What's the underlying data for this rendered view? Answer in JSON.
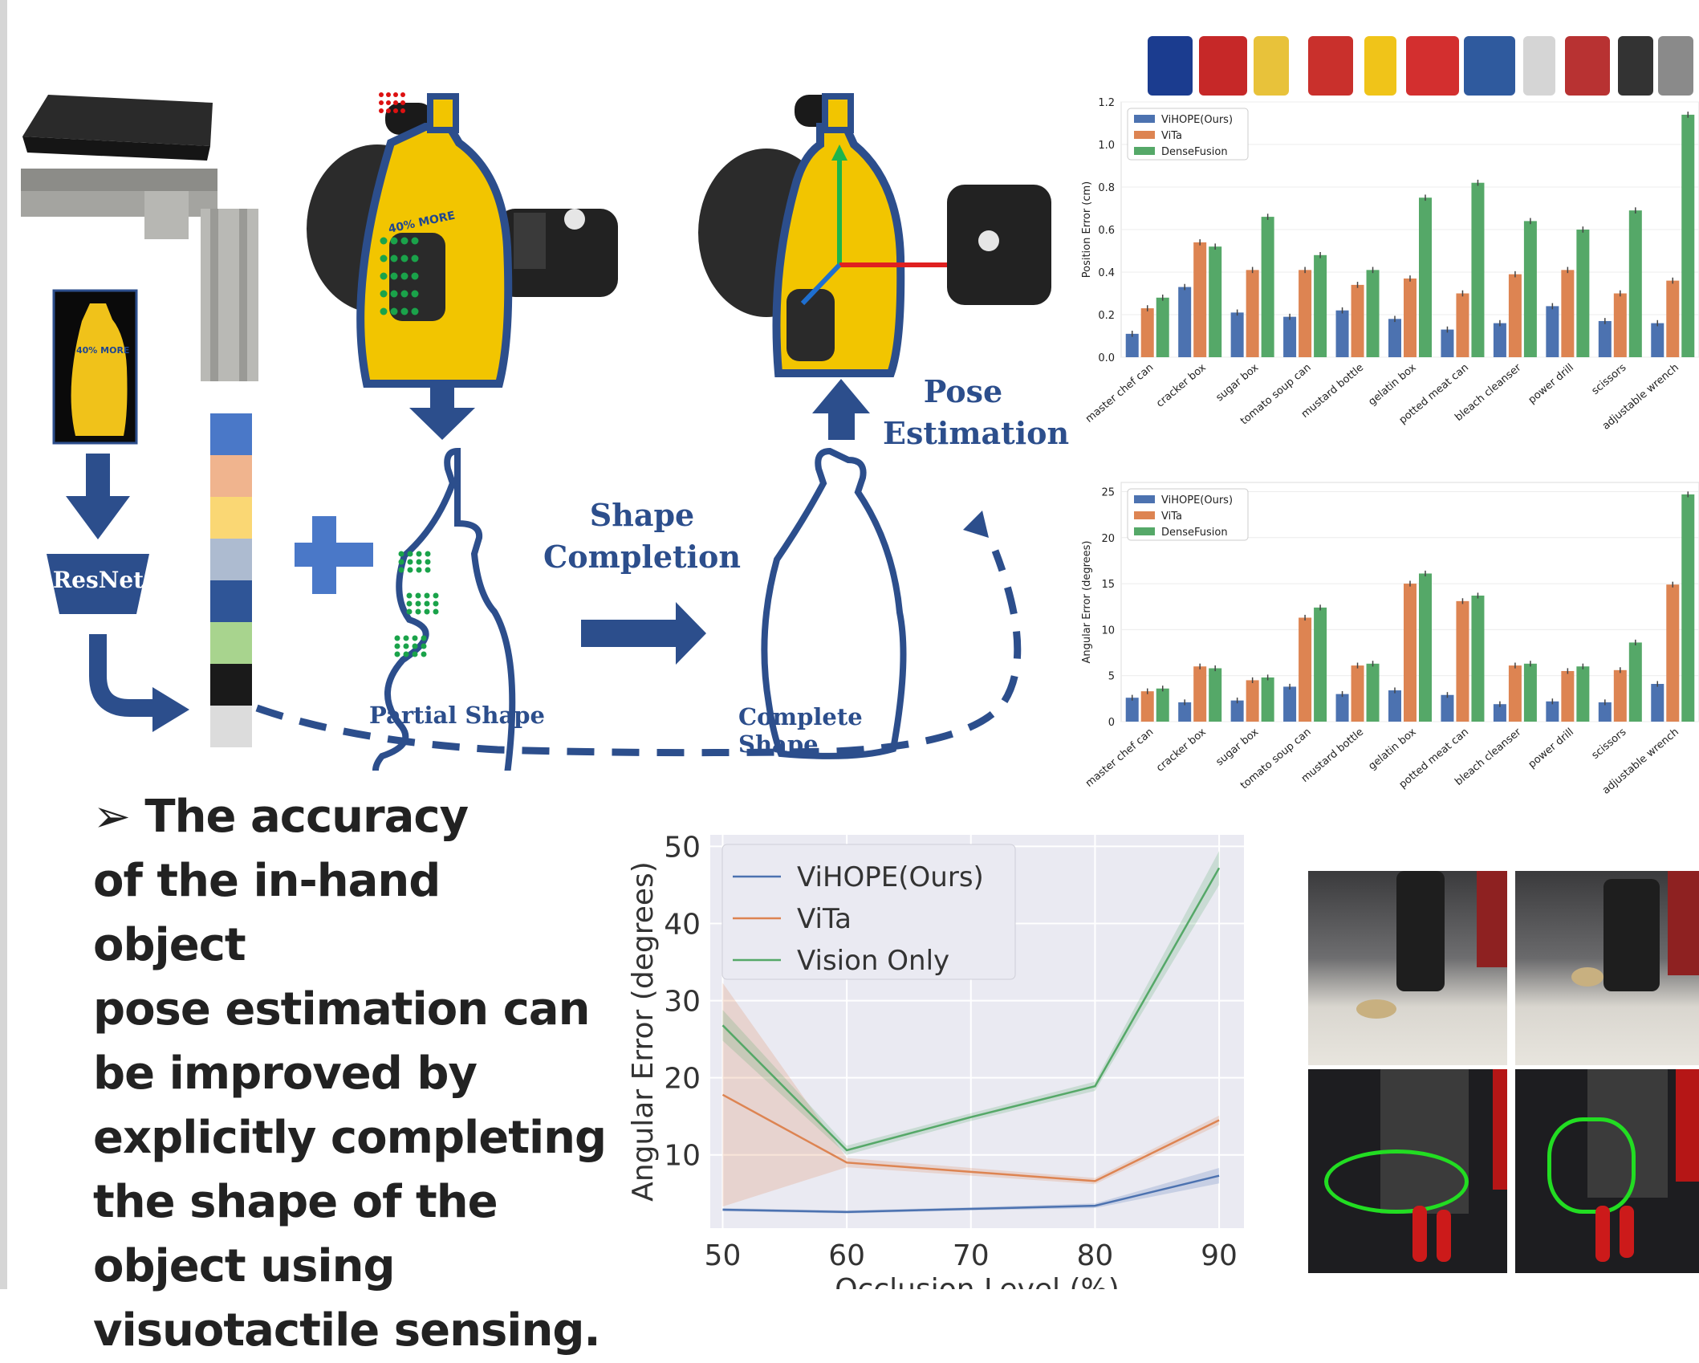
{
  "pipeline": {
    "resnet_label": "ResNet",
    "shape_completion_label": "Shape Completion",
    "pose_estimation_label": "Pose Estimation",
    "partial_shape_label": "Partial Shape",
    "complete_shape_label": "Complete Shape",
    "feature_colors": [
      "#4a78c8",
      "#f0b48e",
      "#fad774",
      "#adbbd0",
      "#2f5597",
      "#a8d48e",
      "#1a1a1a",
      "#dcdcdc"
    ]
  },
  "bullet": {
    "marker": "➢",
    "lines": [
      "The accuracy",
      "of the in-hand object",
      "pose estimation can",
      "be improved by",
      "explicitly completing",
      "the shape of the",
      "object using",
      "visuotactile sensing."
    ]
  },
  "objects": [
    "master chef can",
    "cracker box",
    "sugar box",
    "tomato soup can",
    "mustard bottle",
    "gelatin box",
    "potted meat can",
    "bleach cleanser",
    "power drill",
    "scissors",
    "adjustable wrench"
  ],
  "colors": {
    "vihope": "#4c72b0",
    "vita": "#dd8452",
    "dense": "#55a868",
    "chart_bg": "#eaeaf2",
    "blue_text": "#2c4e8c"
  },
  "chart_data": [
    {
      "type": "bar",
      "categories": [
        "master chef can",
        "cracker box",
        "sugar box",
        "tomato soup can",
        "mustard bottle",
        "gelatin box",
        "potted meat can",
        "bleach cleanser",
        "power drill",
        "scissors",
        "adjustable wrench"
      ],
      "series": [
        {
          "name": "ViHOPE(Ours)",
          "values": [
            0.11,
            0.33,
            0.21,
            0.19,
            0.22,
            0.18,
            0.13,
            0.16,
            0.24,
            0.17,
            0.16
          ]
        },
        {
          "name": "ViTa",
          "values": [
            0.23,
            0.54,
            0.41,
            0.41,
            0.34,
            0.37,
            0.3,
            0.39,
            0.41,
            0.3,
            0.36
          ]
        },
        {
          "name": "DenseFusion",
          "values": [
            0.28,
            0.52,
            0.66,
            0.48,
            0.41,
            0.75,
            0.82,
            0.64,
            0.6,
            0.69,
            1.14
          ]
        }
      ],
      "ylabel": "Position Error (cm)",
      "ylim": [
        0,
        1.2
      ],
      "yticks": [
        "0.0",
        "0.2",
        "0.4",
        "0.6",
        "0.8",
        "1.0",
        "1.2"
      ],
      "legend": "top-left",
      "grid": true
    },
    {
      "type": "bar",
      "categories": [
        "master chef can",
        "cracker box",
        "sugar box",
        "tomato soup can",
        "mustard bottle",
        "gelatin box",
        "potted meat can",
        "bleach cleanser",
        "power drill",
        "scissors",
        "adjustable wrench"
      ],
      "series": [
        {
          "name": "ViHOPE(Ours)",
          "values": [
            2.6,
            2.1,
            2.3,
            3.8,
            3.0,
            3.4,
            2.9,
            1.9,
            2.2,
            2.1,
            4.1
          ]
        },
        {
          "name": "ViTa",
          "values": [
            3.3,
            6.0,
            4.5,
            11.3,
            6.1,
            15.0,
            13.1,
            6.1,
            5.5,
            5.6,
            14.9
          ]
        },
        {
          "name": "DenseFusion",
          "values": [
            3.6,
            5.8,
            4.8,
            12.4,
            6.3,
            16.1,
            13.7,
            6.3,
            6.0,
            8.6,
            24.7
          ]
        }
      ],
      "ylabel": "Angular Error (degrees)",
      "ylim": [
        0,
        26
      ],
      "yticks": [
        "0",
        "5",
        "10",
        "15",
        "20",
        "25"
      ],
      "legend": "top-left",
      "grid": true
    },
    {
      "type": "line",
      "x": [
        50,
        60,
        70,
        80,
        90
      ],
      "series": [
        {
          "name": "ViHOPE(Ours)",
          "values": [
            2.9,
            2.6,
            3.0,
            3.4,
            7.3
          ]
        },
        {
          "name": "ViTa",
          "values": [
            17.8,
            9.0,
            7.8,
            6.6,
            14.5
          ]
        },
        {
          "name": "Vision Only",
          "values": [
            26.8,
            10.6,
            14.9,
            18.9,
            47.2
          ]
        }
      ],
      "xlabel": "Occlusion Level (%)",
      "ylabel": "Angular Error (degrees)",
      "xticks": [
        "50",
        "60",
        "70",
        "80",
        "90"
      ],
      "yticks": [
        "10",
        "20",
        "30",
        "40",
        "50"
      ],
      "xlim": [
        49,
        92
      ],
      "ylim": [
        0.5,
        51.5
      ],
      "legend": "top-left",
      "grid": true
    }
  ]
}
